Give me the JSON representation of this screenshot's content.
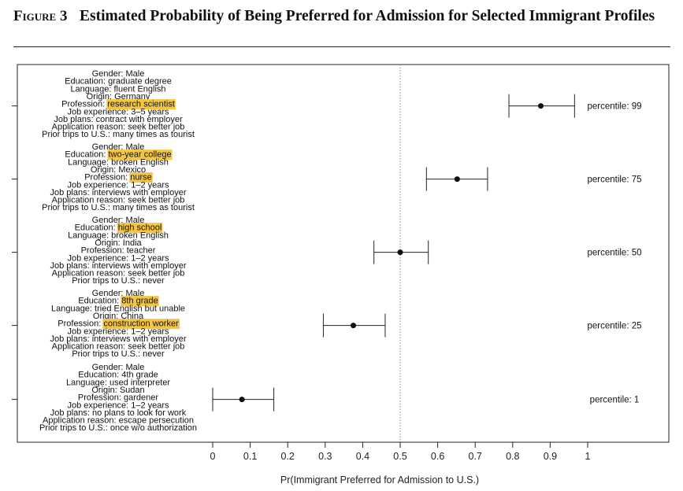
{
  "figure": {
    "label": "Figure 3",
    "title": "Estimated Probability of Being Preferred for Admission for Selected Immigrant Profiles"
  },
  "colors": {
    "highlight": "#f5c542",
    "point": "#111111",
    "reference_line": "#888888"
  },
  "chart_data": {
    "type": "scatter",
    "xlabel": "Pr(Immigrant Preferred for Admission to U.S.)",
    "xlim": [
      0,
      1
    ],
    "xticks": [
      "0",
      "0.1",
      "0.2",
      "0.3",
      "0.4",
      "0.5",
      "0.6",
      "0.7",
      "0.8",
      "0.9",
      "1"
    ],
    "reference_line": 0.5,
    "grid": false,
    "profiles": [
      {
        "label": "percentile: 99",
        "estimate": 0.875,
        "ci_low": 0.79,
        "ci_high": 0.965,
        "attributes": [
          {
            "key": "Gender",
            "value": "Male",
            "highlight": false
          },
          {
            "key": "Education",
            "value": "graduate degree",
            "highlight": false
          },
          {
            "key": "Language",
            "value": "fluent English",
            "highlight": false
          },
          {
            "key": "Origin",
            "value": "Germany",
            "highlight": false
          },
          {
            "key": "Profession",
            "value": "research scientist",
            "highlight": true
          },
          {
            "key": "Job experience",
            "value": "3–5 years",
            "highlight": false
          },
          {
            "key": "Job plans",
            "value": "contract with employer",
            "highlight": false
          },
          {
            "key": "Application reason",
            "value": "seek better job",
            "highlight": false
          },
          {
            "key": "Prior trips to U.S.",
            "value": "many times as tourist",
            "highlight": false
          }
        ]
      },
      {
        "label": "percentile: 75",
        "estimate": 0.652,
        "ci_low": 0.57,
        "ci_high": 0.733,
        "attributes": [
          {
            "key": "Gender",
            "value": "Male",
            "highlight": false
          },
          {
            "key": "Education",
            "value": "two-year college",
            "highlight": true
          },
          {
            "key": "Language",
            "value": "broken English",
            "highlight": false
          },
          {
            "key": "Origin",
            "value": "Mexico",
            "highlight": false
          },
          {
            "key": "Profession",
            "value": "nurse",
            "highlight": true
          },
          {
            "key": "Job experience",
            "value": "1–2 years",
            "highlight": false
          },
          {
            "key": "Job plans",
            "value": "interviews with employer",
            "highlight": false
          },
          {
            "key": "Application reason",
            "value": "seek better job",
            "highlight": false
          },
          {
            "key": "Prior trips to U.S.",
            "value": "many times as tourist",
            "highlight": false
          }
        ]
      },
      {
        "label": "percentile: 50",
        "estimate": 0.5,
        "ci_low": 0.43,
        "ci_high": 0.575,
        "attributes": [
          {
            "key": "Gender",
            "value": "Male",
            "highlight": false
          },
          {
            "key": "Education",
            "value": "high school",
            "highlight": true
          },
          {
            "key": "Language",
            "value": "broken English",
            "highlight": false
          },
          {
            "key": "Origin",
            "value": "India",
            "highlight": false
          },
          {
            "key": "Profession",
            "value": "teacher",
            "highlight": false
          },
          {
            "key": "Job experience",
            "value": "1–2 years",
            "highlight": false
          },
          {
            "key": "Job plans",
            "value": "interviews with employer",
            "highlight": false
          },
          {
            "key": "Application reason",
            "value": "seek better job",
            "highlight": false
          },
          {
            "key": "Prior trips to U.S.",
            "value": "never",
            "highlight": false
          }
        ]
      },
      {
        "label": "percentile: 25",
        "estimate": 0.375,
        "ci_low": 0.295,
        "ci_high": 0.46,
        "attributes": [
          {
            "key": "Gender",
            "value": "Male",
            "highlight": false
          },
          {
            "key": "Education",
            "value": "8th grade",
            "highlight": true
          },
          {
            "key": "Language",
            "value": "tried English but unable",
            "highlight": false
          },
          {
            "key": "Origin",
            "value": "China",
            "highlight": false
          },
          {
            "key": "Profession",
            "value": "construction worker",
            "highlight": true
          },
          {
            "key": "Job experience",
            "value": "1–2 years",
            "highlight": false
          },
          {
            "key": "Job plans",
            "value": "interviews with employer",
            "highlight": false
          },
          {
            "key": "Application reason",
            "value": "seek better job",
            "highlight": false
          },
          {
            "key": "Prior trips to U.S.",
            "value": "never",
            "highlight": false
          }
        ]
      },
      {
        "label": "percentile: 1",
        "estimate": 0.078,
        "ci_low": 0.0,
        "ci_high": 0.163,
        "attributes": [
          {
            "key": "Gender",
            "value": "Male",
            "highlight": false
          },
          {
            "key": "Education",
            "value": "4th grade",
            "highlight": false
          },
          {
            "key": "Language",
            "value": "used interpreter",
            "highlight": false
          },
          {
            "key": "Origin",
            "value": "Sudan",
            "highlight": false
          },
          {
            "key": "Profession",
            "value": "gardener",
            "highlight": false
          },
          {
            "key": "Job experience",
            "value": "1–2 years",
            "highlight": false
          },
          {
            "key": "Job plans",
            "value": "no plans to look for work",
            "highlight": false
          },
          {
            "key": "Application reason",
            "value": "escape persecution",
            "highlight": false
          },
          {
            "key": "Prior trips to U.S.",
            "value": "once w/o authorization",
            "highlight": false
          }
        ]
      }
    ]
  }
}
